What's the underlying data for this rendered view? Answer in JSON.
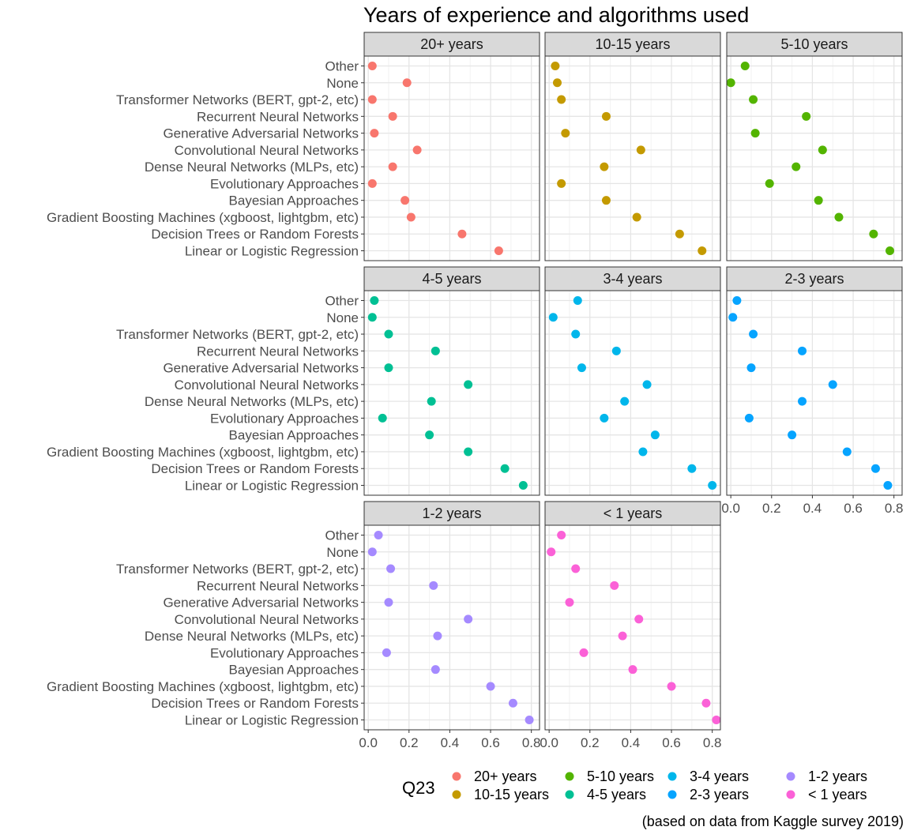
{
  "chart_data": {
    "type": "scatter",
    "title": "Years of experience and algorithms used",
    "caption": "(based on data from Kaggle survey 2019)",
    "xlim": [
      -0.02,
      0.84
    ],
    "x_ticks": [
      0.0,
      0.2,
      0.4,
      0.6,
      0.8
    ],
    "x_tick_labels": [
      "0.0",
      "0.2",
      "0.4",
      "0.6",
      "0.8"
    ],
    "grid": true,
    "categories": [
      "Other",
      "None",
      "Transformer Networks (BERT, gpt-2, etc)",
      "Recurrent Neural Networks",
      "Generative Adversarial Networks",
      "Convolutional Neural Networks",
      "Dense Neural Networks (MLPs, etc)",
      "Evolutionary Approaches",
      "Bayesian Approaches",
      "Gradient Boosting Machines (xgboost, lightgbm, etc)",
      "Decision Trees or Random Forests",
      "Linear or Logistic Regression"
    ],
    "legend": {
      "title": "Q23",
      "position": "bottom",
      "entries": [
        "20+ years",
        "10-15 years",
        "5-10 years",
        "4-5 years",
        "3-4 years",
        "2-3 years",
        "1-2 years",
        "< 1 years"
      ]
    },
    "panels": [
      {
        "name": "20+ years",
        "color": "#F8766D",
        "values": [
          0.02,
          0.19,
          0.02,
          0.12,
          0.03,
          0.24,
          0.12,
          0.02,
          0.18,
          0.21,
          0.46,
          0.64
        ]
      },
      {
        "name": "10-15 years",
        "color": "#C49A00",
        "values": [
          0.03,
          0.04,
          0.06,
          0.28,
          0.08,
          0.45,
          0.27,
          0.06,
          0.28,
          0.43,
          0.64,
          0.75
        ]
      },
      {
        "name": "5-10 years",
        "color": "#53B400",
        "values": [
          0.07,
          0.0,
          0.11,
          0.37,
          0.12,
          0.45,
          0.32,
          0.19,
          0.43,
          0.53,
          0.7,
          0.78
        ]
      },
      {
        "name": "4-5 years",
        "color": "#00C094",
        "values": [
          0.03,
          0.02,
          0.1,
          0.33,
          0.1,
          0.49,
          0.31,
          0.07,
          0.3,
          0.49,
          0.67,
          0.76
        ]
      },
      {
        "name": "3-4 years",
        "color": "#00B6EB",
        "values": [
          0.14,
          0.02,
          0.13,
          0.33,
          0.16,
          0.48,
          0.37,
          0.27,
          0.52,
          0.46,
          0.7,
          0.8
        ]
      },
      {
        "name": "2-3 years",
        "color": "#06A4FF",
        "values": [
          0.03,
          0.01,
          0.11,
          0.35,
          0.1,
          0.5,
          0.35,
          0.09,
          0.3,
          0.57,
          0.71,
          0.77
        ]
      },
      {
        "name": "1-2 years",
        "color": "#A58AFF",
        "values": [
          0.05,
          0.02,
          0.11,
          0.32,
          0.1,
          0.49,
          0.34,
          0.09,
          0.33,
          0.6,
          0.71,
          0.79
        ]
      },
      {
        "name": "< 1 years",
        "color": "#FB61D7",
        "values": [
          0.06,
          0.01,
          0.13,
          0.32,
          0.1,
          0.44,
          0.36,
          0.17,
          0.41,
          0.6,
          0.77,
          0.82
        ]
      }
    ]
  }
}
